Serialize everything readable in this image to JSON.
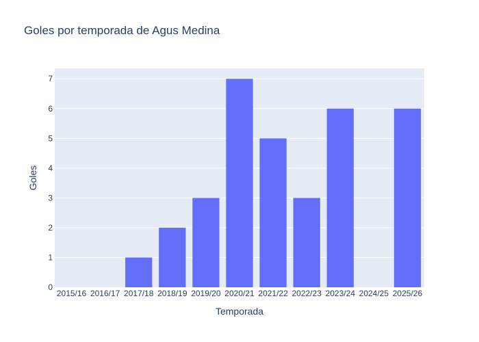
{
  "chart_data": {
    "type": "bar",
    "title": "Goles por temporada de Agus Medina",
    "xlabel": "Temporada",
    "ylabel": "Goles",
    "categories": [
      "2015/16",
      "2016/17",
      "2017/18",
      "2018/19",
      "2019/20",
      "2020/21",
      "2021/22",
      "2022/23",
      "2023/24",
      "2024/25",
      "2025/26"
    ],
    "values": [
      0,
      0,
      1,
      2,
      3,
      7,
      5,
      3,
      6,
      0,
      6
    ],
    "ylim": [
      0,
      7.35
    ],
    "yticks": [
      0,
      1,
      2,
      3,
      4,
      5,
      6,
      7
    ],
    "grid": true,
    "legend": "none",
    "colors": {
      "bar": "#636efa",
      "plot_background": "#e5ecf6",
      "grid": "#ffffff",
      "text": "#2a3f5f"
    }
  }
}
